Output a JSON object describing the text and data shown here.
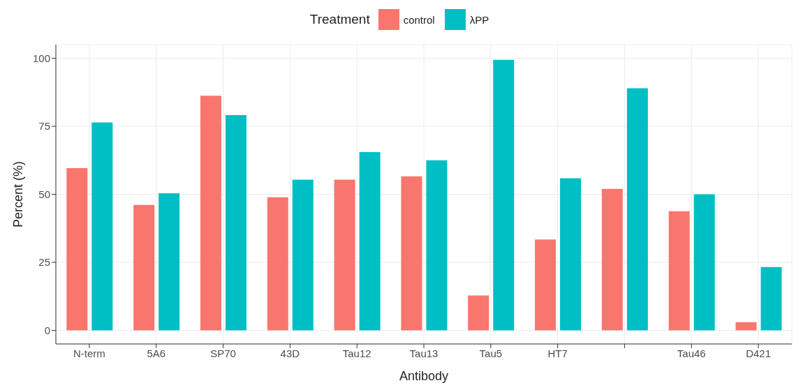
{
  "chart_data": {
    "type": "bar",
    "xlabel": "Antibody",
    "ylabel": "Percent (%)",
    "legend_title": "Treatment",
    "legend": "top",
    "categories": [
      "N-term",
      "5A6",
      "SP70",
      "43D",
      "Tau12",
      "Tau13",
      "Tau5",
      "HT7",
      null,
      "Tau46",
      "D421"
    ],
    "series": [
      {
        "name": "control",
        "color": "#f8766d",
        "values": [
          59.6,
          46.1,
          86.2,
          48.9,
          55.4,
          56.6,
          12.8,
          33.4,
          52.0,
          43.8,
          3.0
        ]
      },
      {
        "name": "λPP",
        "color": "#00bfc4",
        "values": [
          76.4,
          50.4,
          79.1,
          55.4,
          65.5,
          62.5,
          99.4,
          55.9,
          89.0,
          50.0,
          23.3
        ]
      }
    ],
    "ylim": [
      -5,
      105
    ],
    "yticks": [
      0,
      25,
      50,
      75,
      100
    ],
    "grid": true
  }
}
